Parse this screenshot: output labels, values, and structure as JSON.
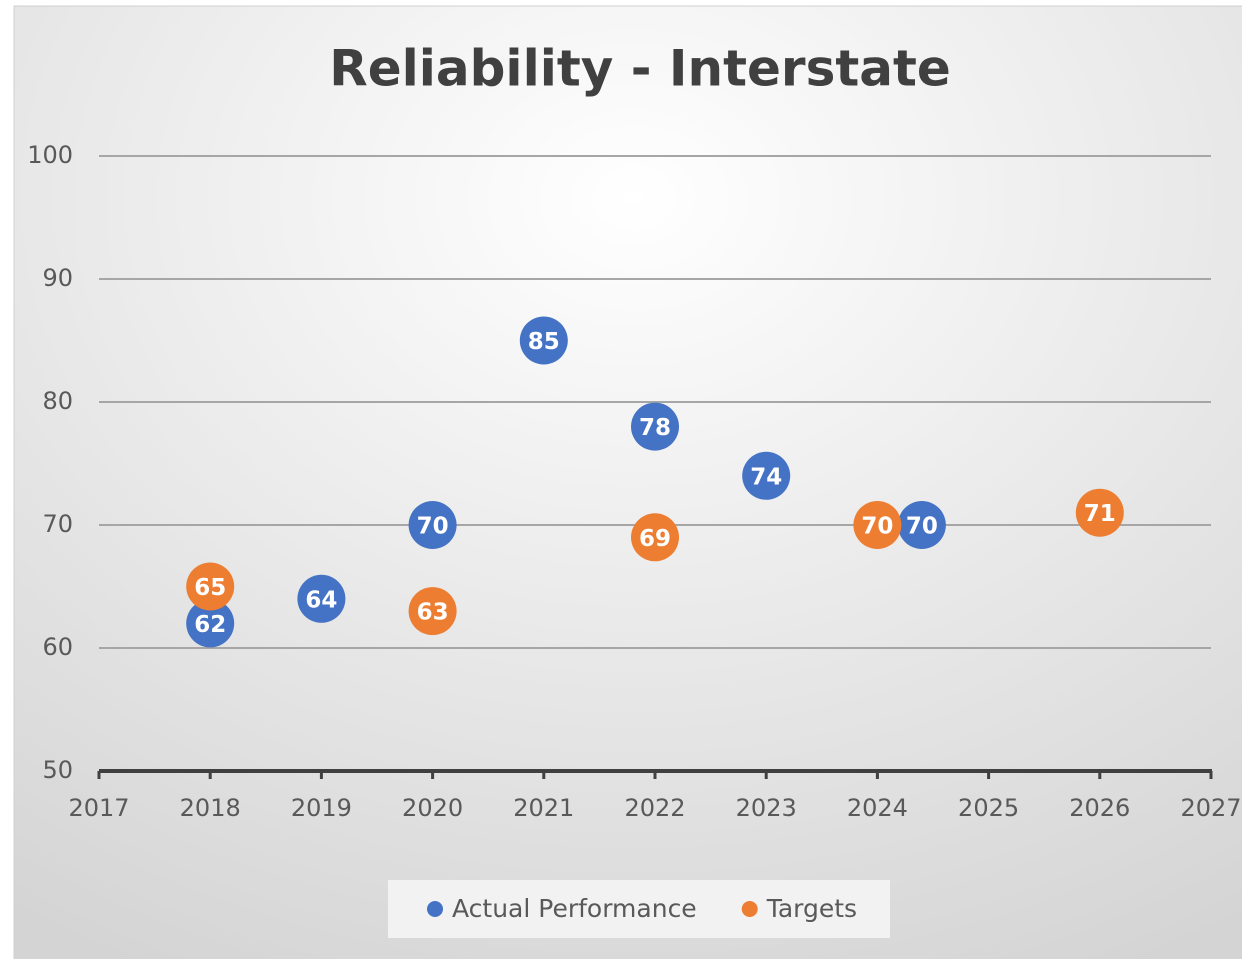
{
  "chart_data": {
    "type": "scatter",
    "title": "Reliability - Interstate",
    "series": [
      {
        "name": "Actual Performance",
        "color": "#4472c4",
        "x": [
          2018,
          2019,
          2020,
          2021,
          2022,
          2023,
          2024.4
        ],
        "values": [
          62,
          64,
          70,
          85,
          78,
          74,
          70
        ]
      },
      {
        "name": "Targets",
        "color": "#ed7d31",
        "x": [
          2018,
          2020,
          2022,
          2024,
          2026
        ],
        "values": [
          65,
          63,
          69,
          70,
          71
        ]
      }
    ],
    "xlim": [
      2017,
      2027
    ],
    "xticks": [
      2017,
      2018,
      2019,
      2020,
      2021,
      2022,
      2023,
      2024,
      2025,
      2026,
      2027
    ],
    "ylim": [
      50,
      100
    ],
    "yticks": [
      50,
      60,
      70,
      80,
      90,
      100
    ],
    "grid": true,
    "legend": "bottom"
  }
}
